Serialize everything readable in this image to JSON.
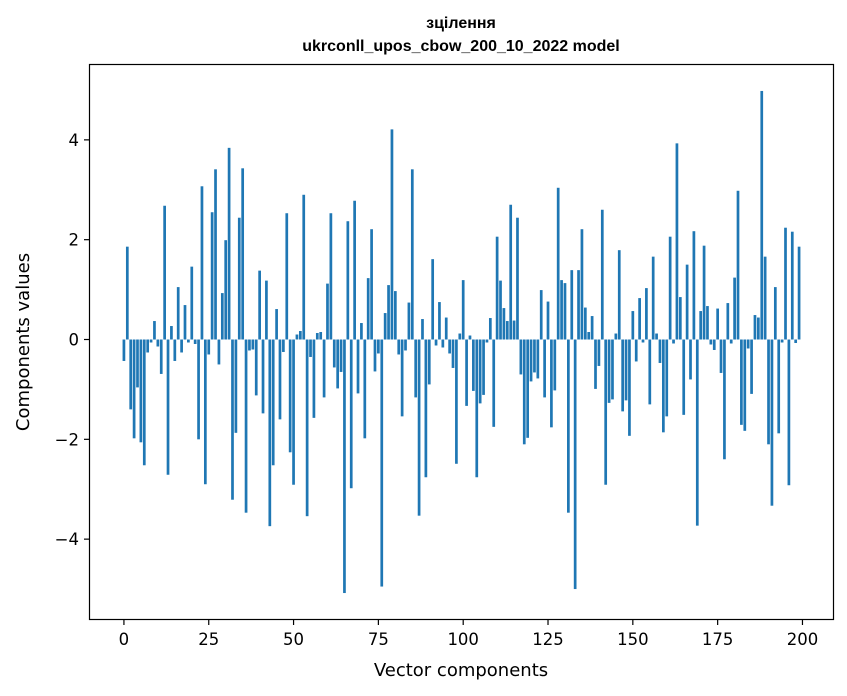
{
  "chart_data": {
    "type": "bar",
    "title": "зцілення",
    "subtitle": "ukrconll_upos_cbow_200_10_2022 model",
    "xlabel": "Vector components",
    "ylabel": "Components values",
    "xlim": [
      -10,
      209
    ],
    "ylim": [
      -5.6,
      5.5
    ],
    "xticks": [
      0,
      25,
      50,
      75,
      100,
      125,
      150,
      175,
      200
    ],
    "yticks": [
      -4,
      -2,
      0,
      2,
      4
    ],
    "xtick_labels": [
      "0",
      "25",
      "50",
      "75",
      "100",
      "125",
      "150",
      "175",
      "200"
    ],
    "ytick_labels": [
      "−4",
      "−2",
      "0",
      "2",
      "4"
    ],
    "bar_color": "#1f77b4",
    "grid": false,
    "values": [
      -0.43,
      1.86,
      -1.4,
      -1.98,
      -0.96,
      -2.06,
      -2.52,
      -0.26,
      -0.06,
      0.37,
      -0.14,
      -0.69,
      2.68,
      -2.71,
      0.27,
      -0.43,
      1.05,
      -0.26,
      0.69,
      -0.06,
      1.46,
      -0.09,
      -2.0,
      3.07,
      -2.9,
      -0.3,
      2.55,
      3.41,
      -0.5,
      0.93,
      1.99,
      3.84,
      -3.21,
      -1.87,
      2.44,
      3.43,
      -3.47,
      -0.22,
      -0.2,
      -1.12,
      1.38,
      -1.48,
      1.18,
      -3.74,
      -2.52,
      0.61,
      -1.6,
      -0.25,
      2.53,
      -2.26,
      -2.91,
      0.1,
      0.17,
      2.9,
      -3.54,
      -0.35,
      -1.57,
      0.13,
      0.15,
      -1.16,
      1.12,
      2.53,
      -0.56,
      -0.98,
      -0.65,
      -5.08,
      2.37,
      -2.98,
      2.78,
      -1.08,
      0.33,
      -1.98,
      1.23,
      2.21,
      -0.64,
      -0.28,
      -4.95,
      0.53,
      1.09,
      4.21,
      0.97,
      -0.3,
      -1.54,
      -0.22,
      0.74,
      3.41,
      -1.16,
      -3.53,
      0.41,
      -2.76,
      -0.9,
      1.61,
      -0.12,
      0.75,
      -0.16,
      0.44,
      -0.28,
      -0.57,
      -2.49,
      0.12,
      1.19,
      -1.33,
      0.08,
      -1.03,
      -2.76,
      -1.28,
      -1.11,
      -0.06,
      0.43,
      -1.75,
      2.06,
      1.18,
      0.63,
      0.37,
      2.7,
      0.38,
      2.44,
      -0.7,
      -2.1,
      -1.97,
      -0.84,
      -0.66,
      -0.78,
      0.99,
      -1.16,
      0.76,
      -1.76,
      -1.02,
      3.04,
      1.19,
      1.13,
      -3.47,
      1.39,
      -5.0,
      1.39,
      2.21,
      0.64,
      0.15,
      0.47,
      -0.99,
      -0.53,
      2.6,
      -2.91,
      -1.27,
      -1.2,
      0.12,
      1.79,
      -1.44,
      -1.22,
      -1.93,
      0.57,
      -0.44,
      0.83,
      -0.06,
      1.03,
      -1.3,
      1.66,
      0.12,
      -0.47,
      -1.86,
      -1.54,
      2.06,
      -0.08,
      3.93,
      0.85,
      -1.51,
      1.5,
      -0.8,
      2.17,
      -3.73,
      0.57,
      1.88,
      0.67,
      -0.1,
      -0.21,
      0.62,
      -0.67,
      -2.4,
      0.73,
      -0.08,
      1.24,
      2.98,
      -1.71,
      -1.83,
      -0.18,
      -1.09,
      0.49,
      0.44,
      4.98,
      1.66,
      -2.1,
      -3.33,
      1.05,
      -1.88,
      -0.06,
      2.24,
      -2.92,
      2.16,
      -0.07,
      1.86
    ]
  }
}
